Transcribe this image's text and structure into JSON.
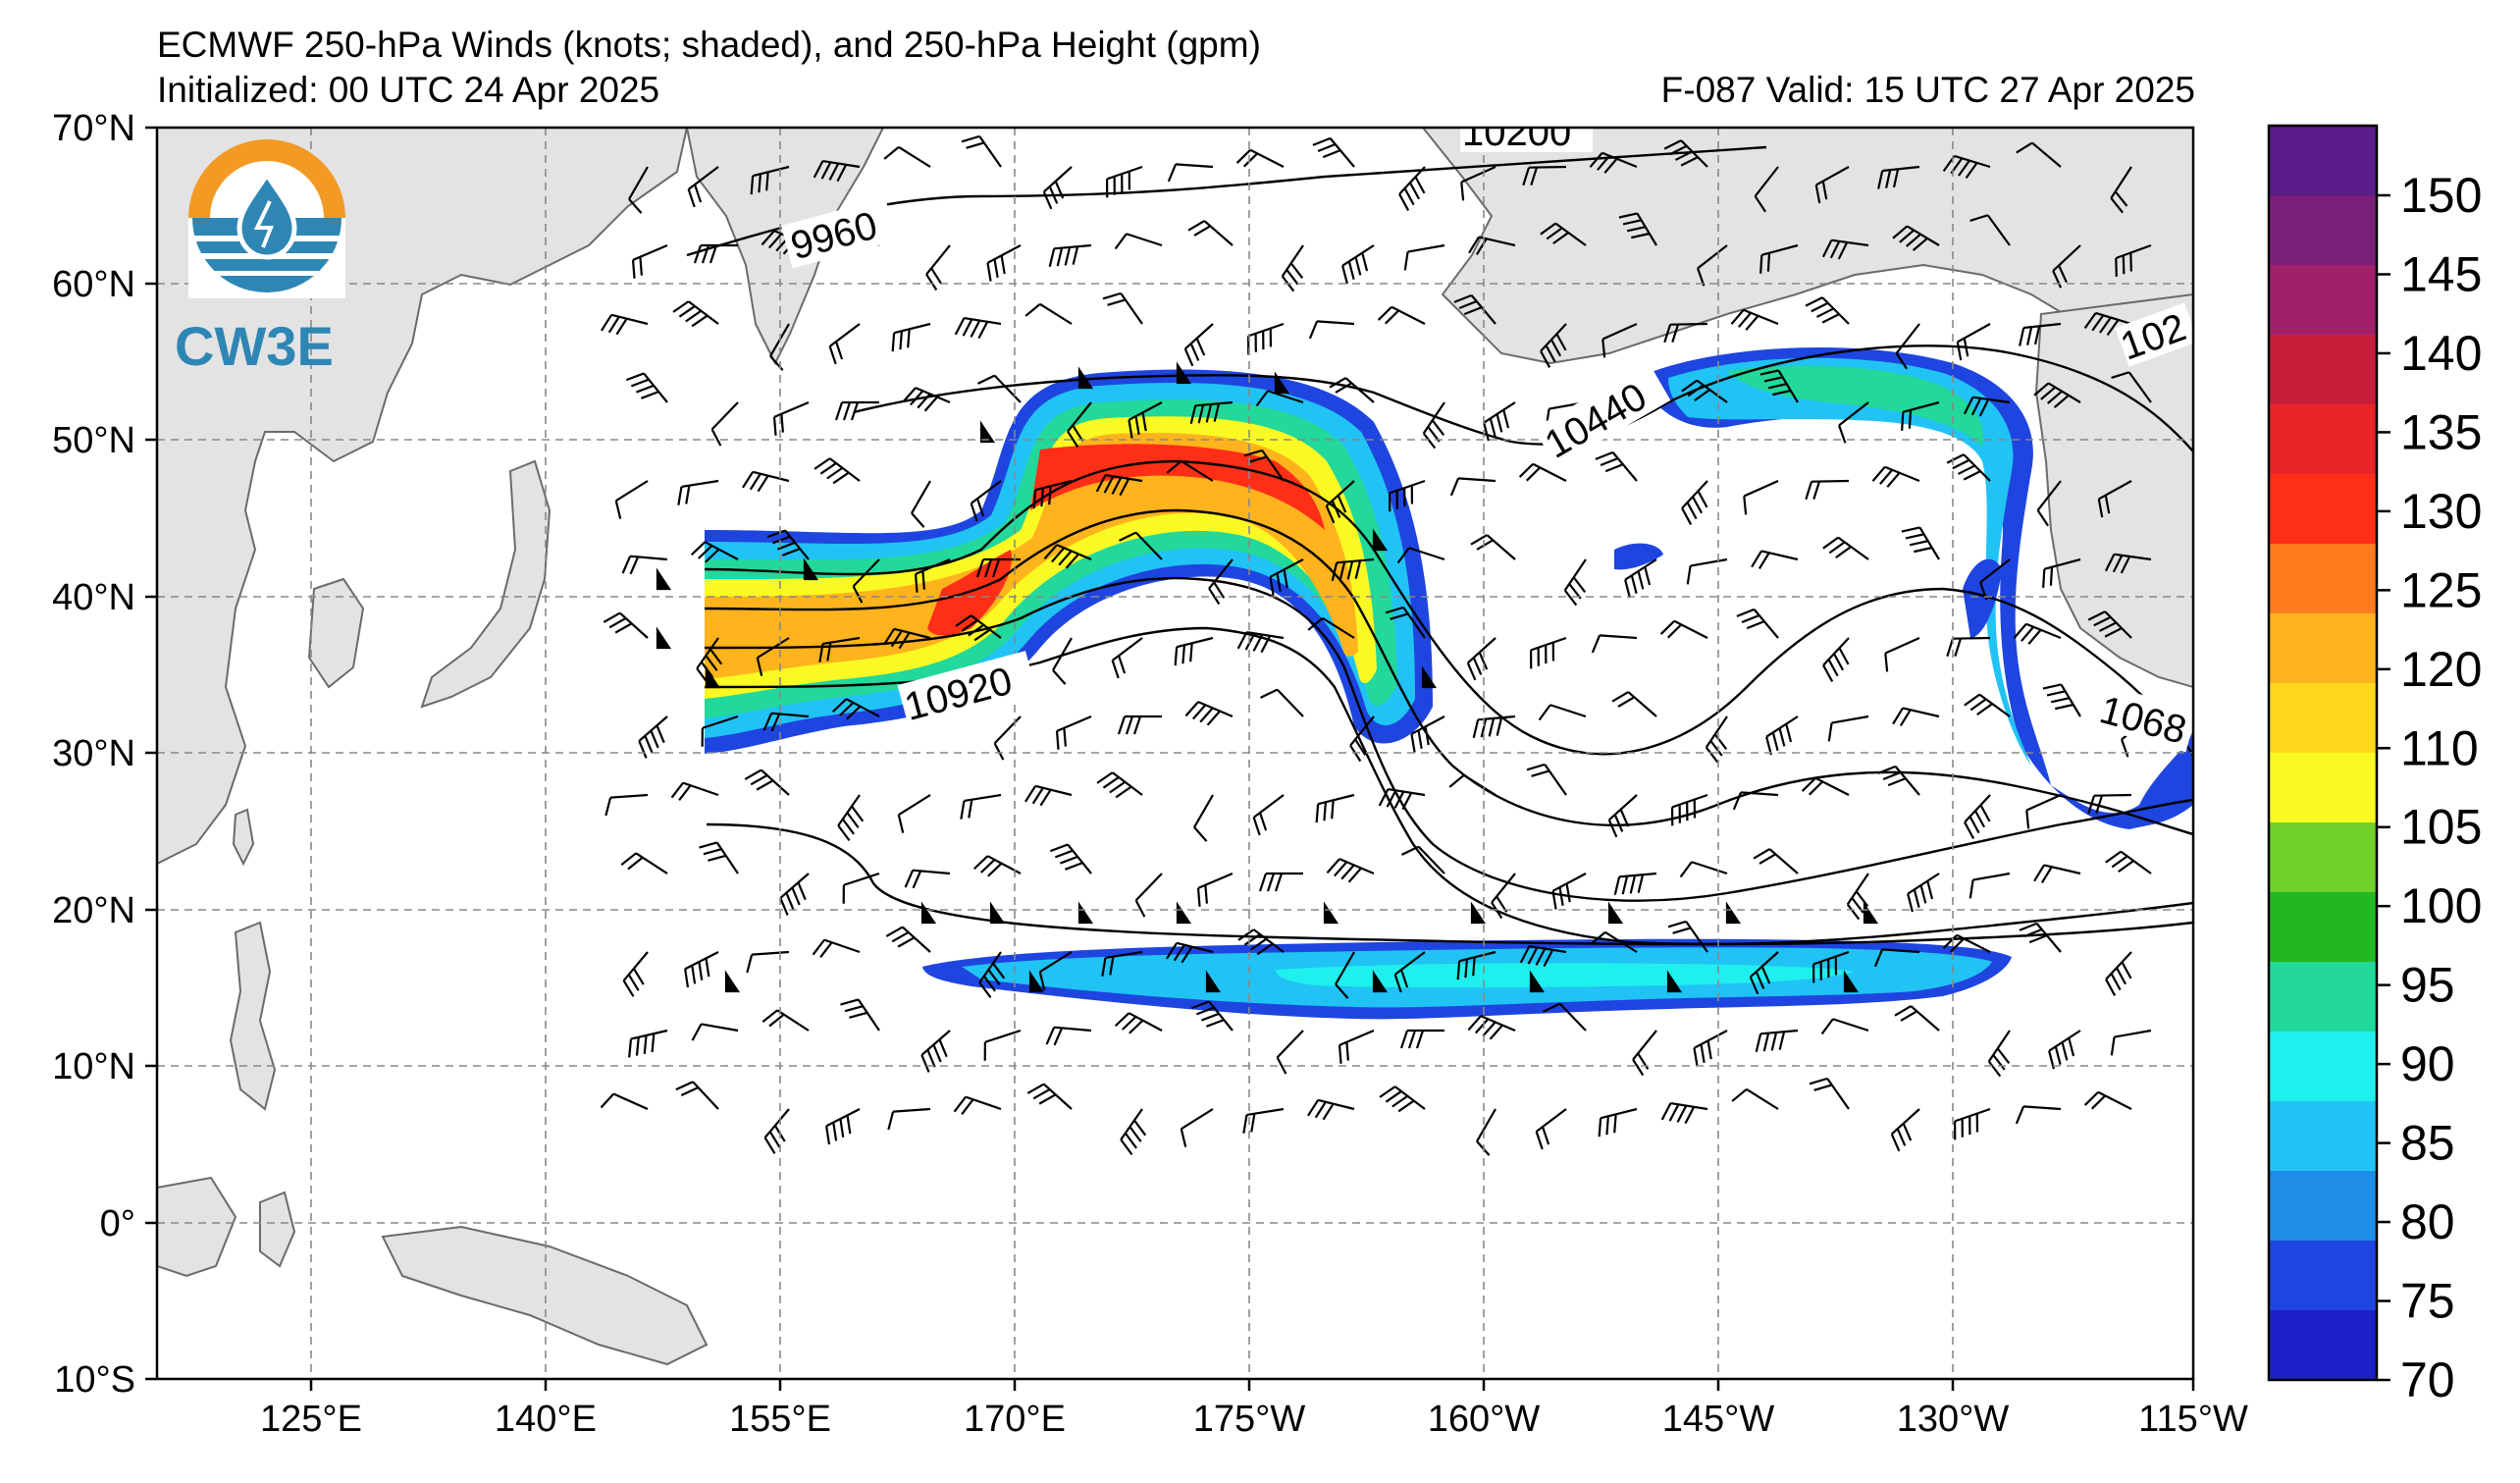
{
  "header": {
    "title": "ECMWF 250-hPa Winds (knots; shaded), and 250-hPa Height (gpm)",
    "initialized": "Initialized: 00 UTC 24 Apr 2025",
    "valid": "F-087  Valid: 15 UTC 27 Apr 2025"
  },
  "logo": {
    "text": "CW3E",
    "colors": {
      "orange": "#F39A24",
      "blue": "#2E86B4"
    },
    "icon": "water-drop-icon"
  },
  "map": {
    "lat_labels": [
      "70°N",
      "60°N",
      "50°N",
      "40°N",
      "30°N",
      "20°N",
      "10°N",
      "0°",
      "10°S"
    ],
    "lon_labels": [
      "125°E",
      "140°E",
      "155°E",
      "170°E",
      "175°W",
      "160°W",
      "145°W",
      "130°W",
      "115°W"
    ],
    "land_color": "#e3e3e3",
    "coast_color": "#666666",
    "grid": "dashed"
  },
  "colorbar": {
    "ticks": [
      "150",
      "145",
      "140",
      "135",
      "130",
      "125",
      "120",
      "110",
      "105",
      "100",
      "95",
      "90",
      "85",
      "80",
      "75",
      "70"
    ],
    "colors": [
      "#5b1d8a",
      "#7a1f7a",
      "#a0206a",
      "#c81e3c",
      "#e82424",
      "#ff2e17",
      "#ff7b1d",
      "#ffb31c",
      "#ffd81e",
      "#fbf923",
      "#6fd12a",
      "#23b823",
      "#22d89a",
      "#1ff0ee",
      "#21c3f4",
      "#1d8de6",
      "#1f45e0",
      "#1b21c6"
    ]
  },
  "contour_labels": [
    "9960",
    "10200",
    "10440",
    "10920",
    "1068",
    "102"
  ],
  "chart_data": {
    "type": "map",
    "title": "ECMWF 250-hPa Winds (knots; shaded), and 250-hPa Height (gpm)",
    "wind_speed_colorbar_knots": [
      70,
      75,
      80,
      85,
      90,
      95,
      100,
      105,
      110,
      120,
      125,
      130,
      135,
      140,
      145,
      150
    ],
    "lat_range": [
      "10°S",
      "70°N"
    ],
    "lon_range": [
      "110°E",
      "115°W"
    ],
    "height_contours_gpm": [
      9960,
      10200,
      10440,
      10920,
      1068,
      102
    ]
  }
}
